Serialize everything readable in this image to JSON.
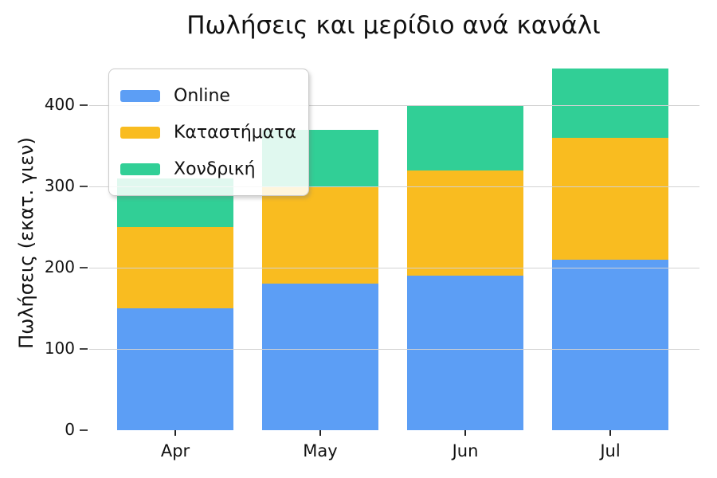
{
  "chart": {
    "title": "Πωλήσεις και μερίδιο ανά κανάλι",
    "ylabel": "Πωλήσεις (εκατ. γιεν)"
  },
  "chart_data": {
    "type": "bar",
    "stacked": true,
    "title": "Πωλήσεις και μερίδιο ανά κανάλι",
    "xlabel": "",
    "ylabel": "Πωλήσεις (εκατ. γιεν)",
    "categories": [
      "Apr",
      "May",
      "Jun",
      "Jul"
    ],
    "series": [
      {
        "name": "Online",
        "color": "#5C9EF5",
        "values": [
          150,
          180,
          190,
          210
        ]
      },
      {
        "name": "Καταστήματα",
        "color": "#F9BC20",
        "values": [
          100,
          120,
          130,
          150
        ]
      },
      {
        "name": "Χονδρική",
        "color": "#31CF96",
        "values": [
          60,
          70,
          80,
          85
        ]
      }
    ],
    "totals": [
      310,
      370,
      400,
      445
    ],
    "ylim": [
      0,
      450
    ],
    "yticks": [
      0,
      100,
      200,
      300,
      400
    ],
    "grid": true,
    "grid_color": "#d2d2d2",
    "text_color": "#111111",
    "legend_position": "upper-left",
    "legend_background": "rgba(255,255,255,0.85)"
  }
}
